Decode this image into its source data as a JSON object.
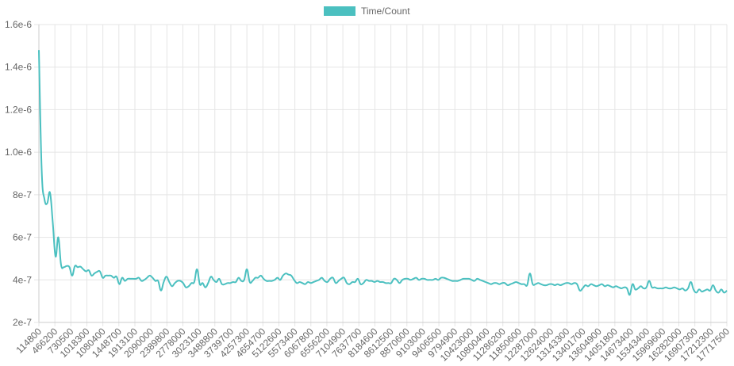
{
  "chart_data": {
    "type": "line",
    "legend": {
      "label": "Time/Count",
      "color": "#4bc0c0",
      "placement": "top-center"
    },
    "ylim": [
      2e-07,
      1.6e-06
    ],
    "y_ticks": [
      "2e-7",
      "4e-7",
      "6e-7",
      "8e-7",
      "1.0e-6",
      "1.2e-6",
      "1.4e-6",
      "1.6e-6"
    ],
    "y_tick_values": [
      2e-07,
      4e-07,
      6e-07,
      8e-07,
      1e-06,
      1.2e-06,
      1.4e-06,
      1.6e-06
    ],
    "x_tick_labels": [
      "114800",
      "466200",
      "730500",
      "1018300",
      "1080400",
      "1448700",
      "1913100",
      "2090000",
      "2389800",
      "2778000",
      "3023100",
      "3488800",
      "3739700",
      "4257300",
      "4654700",
      "5122600",
      "5573400",
      "6067800",
      "6556200",
      "7104900",
      "7637700",
      "8184600",
      "8612500",
      "8870600",
      "9103000",
      "9406500",
      "9794900",
      "10423000",
      "10800400",
      "11286200",
      "11850600",
      "12287000",
      "12624000",
      "13143300",
      "13401700",
      "13604900",
      "14051800",
      "14673400",
      "15343400",
      "15969600",
      "16282000",
      "16907300",
      "17212300",
      "17717500"
    ],
    "series": [
      {
        "name": "Time/Count",
        "color": "#4bc0c0",
        "values": [
          1.48e-06,
          9.2e-07,
          7.8e-07,
          7.6e-07,
          8.1e-07,
          6.7e-07,
          5.1e-07,
          6e-07,
          4.7e-07,
          4.6e-07,
          4.65e-07,
          4.6e-07,
          4.2e-07,
          4.65e-07,
          4.6e-07,
          4.62e-07,
          4.5e-07,
          4.4e-07,
          4.45e-07,
          4.2e-07,
          4.3e-07,
          4.38e-07,
          4.4e-07,
          4.1e-07,
          4.2e-07,
          4.2e-07,
          4.2e-07,
          4.1e-07,
          4.15e-07,
          3.8e-07,
          4.1e-07,
          3.95e-07,
          4.05e-07,
          4.05e-07,
          4.05e-07,
          4.05e-07,
          4.1e-07,
          3.95e-07,
          4e-07,
          4.1e-07,
          4.2e-07,
          4.1e-07,
          3.95e-07,
          3.95e-07,
          3.5e-07,
          3.9e-07,
          4.15e-07,
          3.9e-07,
          3.7e-07,
          3.85e-07,
          3.95e-07,
          3.95e-07,
          3.85e-07,
          3.65e-07,
          3.7e-07,
          3.85e-07,
          3.9e-07,
          4.5e-07,
          3.8e-07,
          3.85e-07,
          3.65e-07,
          3.85e-07,
          4.15e-07,
          4e-07,
          3.9e-07,
          4.05e-07,
          3.8e-07,
          3.8e-07,
          3.85e-07,
          3.85e-07,
          3.9e-07,
          3.9e-07,
          4.1e-07,
          3.95e-07,
          4e-07,
          4.5e-07,
          3.9e-07,
          3.95e-07,
          4.1e-07,
          4.1e-07,
          4.2e-07,
          4.05e-07,
          3.95e-07,
          3.95e-07,
          3.95e-07,
          4e-07,
          4.1e-07,
          4e-07,
          4.2e-07,
          4.3e-07,
          4.25e-07,
          4.2e-07,
          4e-07,
          3.85e-07,
          3.9e-07,
          3.85e-07,
          3.8e-07,
          3.9e-07,
          3.85e-07,
          3.9e-07,
          3.95e-07,
          4e-07,
          4.1e-07,
          3.95e-07,
          3.9e-07,
          4.05e-07,
          4.1e-07,
          3.85e-07,
          3.95e-07,
          4.05e-07,
          4.1e-07,
          3.85e-07,
          3.8e-07,
          3.9e-07,
          3.9e-07,
          4.05e-07,
          3.8e-07,
          3.85e-07,
          4e-07,
          3.95e-07,
          3.95e-07,
          3.9e-07,
          3.95e-07,
          3.9e-07,
          3.9e-07,
          3.85e-07,
          3.85e-07,
          3.85e-07,
          4.05e-07,
          4e-07,
          3.85e-07,
          4e-07,
          4.05e-07,
          4.05e-07,
          4e-07,
          4.05e-07,
          4.1e-07,
          4e-07,
          4.05e-07,
          4.05e-07,
          4e-07,
          4e-07,
          4e-07,
          4.05e-07,
          4e-07,
          4.1e-07,
          4.1e-07,
          4.05e-07,
          4e-07,
          3.95e-07,
          3.95e-07,
          3.95e-07,
          4e-07,
          4.05e-07,
          4.05e-07,
          4.05e-07,
          4e-07,
          3.95e-07,
          4.05e-07,
          4e-07,
          3.95e-07,
          3.9e-07,
          3.85e-07,
          3.8e-07,
          3.85e-07,
          3.85e-07,
          3.8e-07,
          3.85e-07,
          3.85e-07,
          3.75e-07,
          3.8e-07,
          3.85e-07,
          3.9e-07,
          3.85e-07,
          3.8e-07,
          3.8e-07,
          3.75e-07,
          4.3e-07,
          3.8e-07,
          3.8e-07,
          3.85e-07,
          3.8e-07,
          3.75e-07,
          3.75e-07,
          3.8e-07,
          3.8e-07,
          3.75e-07,
          3.8e-07,
          3.75e-07,
          3.8e-07,
          3.85e-07,
          3.85e-07,
          3.8e-07,
          3.85e-07,
          3.8e-07,
          3.5e-07,
          3.6e-07,
          3.75e-07,
          3.7e-07,
          3.8e-07,
          3.75e-07,
          3.7e-07,
          3.75e-07,
          3.8e-07,
          3.7e-07,
          3.75e-07,
          3.7e-07,
          3.65e-07,
          3.7e-07,
          3.65e-07,
          3.6e-07,
          3.65e-07,
          3.6e-07,
          3.3e-07,
          3.8e-07,
          3.55e-07,
          3.6e-07,
          3.7e-07,
          3.6e-07,
          3.65e-07,
          3.95e-07,
          3.65e-07,
          3.65e-07,
          3.6e-07,
          3.6e-07,
          3.6e-07,
          3.65e-07,
          3.6e-07,
          3.6e-07,
          3.65e-07,
          3.6e-07,
          3.55e-07,
          3.6e-07,
          3.5e-07,
          3.6e-07,
          3.9e-07,
          3.55e-07,
          3.4e-07,
          3.55e-07,
          3.45e-07,
          3.5e-07,
          3.55e-07,
          3.5e-07,
          3.75e-07,
          3.5e-07,
          3.4e-07,
          3.55e-07,
          3.4e-07,
          3.5e-07
        ]
      }
    ]
  }
}
